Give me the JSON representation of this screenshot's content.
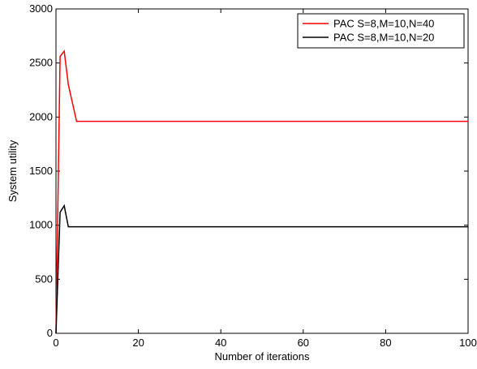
{
  "chart_data": {
    "type": "line",
    "title": "",
    "xlabel": "Number of iterations",
    "ylabel": "System utility",
    "xlim": [
      0,
      100
    ],
    "ylim": [
      0,
      3000
    ],
    "xticks": [
      0,
      20,
      40,
      60,
      80,
      100
    ],
    "yticks": [
      0,
      500,
      1000,
      1500,
      2000,
      2500,
      3000
    ],
    "grid": false,
    "legend_position": "top-right",
    "series": [
      {
        "name": "PAC S=8,M=10,N=40",
        "color": "#ff0000",
        "x": [
          0,
          1,
          2,
          3,
          4,
          5,
          100
        ],
        "y": [
          0,
          2560,
          2610,
          2300,
          2130,
          1960,
          1960
        ]
      },
      {
        "name": "PAC S=8,M=10,N=20",
        "color": "#000000",
        "x": [
          0,
          1,
          2,
          3,
          100
        ],
        "y": [
          0,
          1120,
          1180,
          985,
          985
        ]
      }
    ]
  }
}
